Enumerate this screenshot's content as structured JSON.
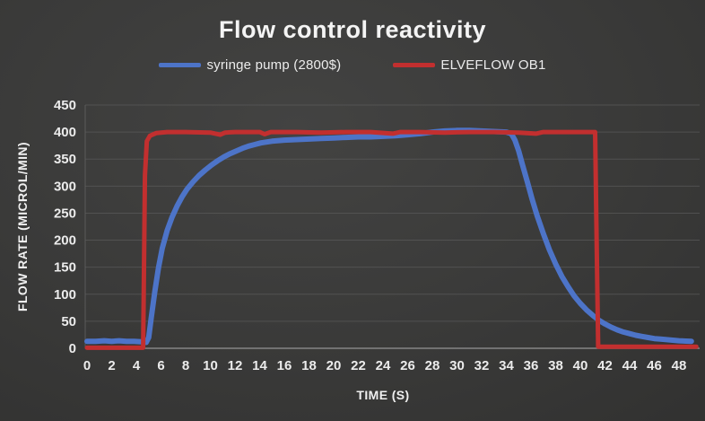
{
  "chart_data": {
    "type": "line",
    "title": "Flow control reactivity",
    "xlabel": "TIME (S)",
    "ylabel": "FLOW RATE (MICROL/MIN)",
    "xlim": [
      0,
      48
    ],
    "ylim": [
      0,
      450
    ],
    "x_ticks": [
      0,
      2,
      4,
      6,
      8,
      10,
      12,
      14,
      16,
      18,
      20,
      22,
      24,
      26,
      28,
      30,
      32,
      34,
      36,
      38,
      40,
      42,
      44,
      46,
      48
    ],
    "y_ticks": [
      0,
      50,
      100,
      150,
      200,
      250,
      300,
      350,
      400,
      450
    ],
    "grid": "horizontal-only",
    "legend_position": "top-center",
    "background_color": "#3a3a39",
    "gridline_color": "#5e5e5e",
    "axis_line_color": "#8e8e8e",
    "text_color": "#ececec",
    "series": [
      {
        "name": "syringe pump (2800$)",
        "color": "#4d74c8",
        "stroke_width": 6,
        "points": [
          [
            0,
            13
          ],
          [
            0.7,
            13
          ],
          [
            1.4,
            14
          ],
          [
            2,
            13
          ],
          [
            2.6,
            14
          ],
          [
            3.2,
            13
          ],
          [
            3.8,
            13
          ],
          [
            4.4,
            12
          ],
          [
            4.8,
            11
          ],
          [
            5,
            20
          ],
          [
            5.2,
            55
          ],
          [
            5.5,
            105
          ],
          [
            5.8,
            150
          ],
          [
            6.1,
            185
          ],
          [
            6.5,
            218
          ],
          [
            6.9,
            243
          ],
          [
            7.3,
            263
          ],
          [
            7.7,
            280
          ],
          [
            8.1,
            294
          ],
          [
            8.6,
            308
          ],
          [
            9.1,
            320
          ],
          [
            9.6,
            330
          ],
          [
            10.1,
            339
          ],
          [
            10.6,
            347
          ],
          [
            11.1,
            354
          ],
          [
            11.6,
            360
          ],
          [
            12.1,
            365
          ],
          [
            12.6,
            370
          ],
          [
            13.1,
            374
          ],
          [
            13.6,
            377
          ],
          [
            14.1,
            380
          ],
          [
            15,
            383
          ],
          [
            16,
            385
          ],
          [
            17,
            386
          ],
          [
            18,
            387
          ],
          [
            19,
            388
          ],
          [
            20,
            389
          ],
          [
            21,
            390
          ],
          [
            22,
            391
          ],
          [
            23,
            391
          ],
          [
            24,
            392
          ],
          [
            25,
            393
          ],
          [
            26,
            395
          ],
          [
            27,
            397
          ],
          [
            28,
            400
          ],
          [
            29,
            402
          ],
          [
            30,
            403
          ],
          [
            31,
            403
          ],
          [
            32,
            402
          ],
          [
            33,
            401
          ],
          [
            34,
            400
          ],
          [
            34.4,
            397
          ],
          [
            34.7,
            385
          ],
          [
            35,
            365
          ],
          [
            35.3,
            340
          ],
          [
            35.7,
            308
          ],
          [
            36.1,
            275
          ],
          [
            36.5,
            245
          ],
          [
            37,
            212
          ],
          [
            37.5,
            182
          ],
          [
            38,
            156
          ],
          [
            38.5,
            133
          ],
          [
            39,
            114
          ],
          [
            39.5,
            97
          ],
          [
            40,
            83
          ],
          [
            40.5,
            71
          ],
          [
            41,
            61
          ],
          [
            41.5,
            52
          ],
          [
            42,
            45
          ],
          [
            42.5,
            39
          ],
          [
            43,
            34
          ],
          [
            43.5,
            30
          ],
          [
            44,
            27
          ],
          [
            44.5,
            24
          ],
          [
            45,
            22
          ],
          [
            45.5,
            20
          ],
          [
            46,
            18
          ],
          [
            46.5,
            17
          ],
          [
            47,
            16
          ],
          [
            47.5,
            15
          ],
          [
            48,
            14
          ],
          [
            49,
            13
          ]
        ]
      },
      {
        "name": "ELVEFLOW OB1",
        "color": "#c22f2f",
        "stroke_width": 5,
        "points": [
          [
            0,
            1
          ],
          [
            1,
            1
          ],
          [
            2,
            1
          ],
          [
            3,
            1
          ],
          [
            4,
            1
          ],
          [
            4.55,
            1
          ],
          [
            4.7,
            320
          ],
          [
            4.85,
            383
          ],
          [
            5.1,
            393
          ],
          [
            5.6,
            398
          ],
          [
            6.5,
            400
          ],
          [
            8,
            400
          ],
          [
            10,
            399
          ],
          [
            10.8,
            395
          ],
          [
            11.2,
            399
          ],
          [
            12,
            400
          ],
          [
            14,
            400
          ],
          [
            14.4,
            396
          ],
          [
            14.9,
            400
          ],
          [
            17,
            400
          ],
          [
            19,
            399
          ],
          [
            21,
            400
          ],
          [
            23,
            400
          ],
          [
            24.8,
            397
          ],
          [
            25.4,
            400
          ],
          [
            27,
            400
          ],
          [
            29,
            399
          ],
          [
            31,
            400
          ],
          [
            33,
            400
          ],
          [
            35,
            399
          ],
          [
            36.4,
            397
          ],
          [
            37,
            400
          ],
          [
            39,
            400
          ],
          [
            41.2,
            400
          ],
          [
            41.35,
            150
          ],
          [
            41.45,
            3
          ],
          [
            42.5,
            3
          ],
          [
            44,
            3
          ],
          [
            46,
            3
          ],
          [
            48,
            3
          ],
          [
            49.4,
            3
          ]
        ]
      }
    ]
  }
}
